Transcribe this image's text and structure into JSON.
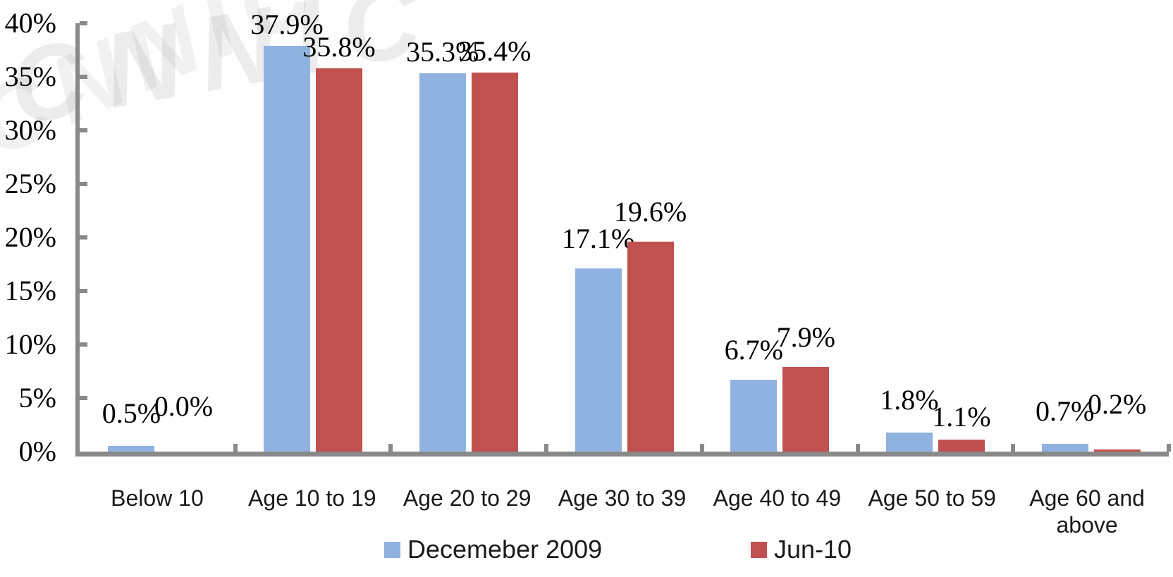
{
  "watermark": "CNNIC",
  "chart_data": {
    "type": "bar",
    "title": "",
    "xlabel": "",
    "ylabel": "",
    "categories": [
      "Below 10",
      "Age 10 to 19",
      "Age 20 to 29",
      "Age 30 to 39",
      "Age 40 to 49",
      "Age 50 to 59",
      "Age 60 and above"
    ],
    "series": [
      {
        "name": "Decemeber 2009",
        "color": "#8FB2E0",
        "values": [
          0.5,
          37.9,
          35.3,
          17.1,
          6.7,
          1.8,
          0.7
        ],
        "data_labels": [
          "0.5%",
          "37.9%",
          "35.3%",
          "17.1%",
          "6.7%",
          "1.8%",
          "0.7%"
        ]
      },
      {
        "name": "Jun-10",
        "color": "#C05150",
        "values": [
          0.0,
          35.8,
          35.4,
          19.6,
          7.9,
          1.1,
          0.2
        ],
        "data_labels": [
          "0.0%",
          "35.8%",
          "35.4%",
          "19.6%",
          "7.9%",
          "1.1%",
          "0.2%"
        ]
      }
    ],
    "y_axis": {
      "min": 0,
      "max": 40,
      "step": 5,
      "tick_labels": [
        "0%",
        "5%",
        "10%",
        "15%",
        "20%",
        "25%",
        "30%",
        "35%",
        "40%"
      ]
    },
    "legend": {
      "position": "bottom",
      "entries": [
        "Decemeber 2009",
        "Jun-10"
      ]
    },
    "grid": false,
    "axis_color": "#898989",
    "text_color": "#000000"
  }
}
